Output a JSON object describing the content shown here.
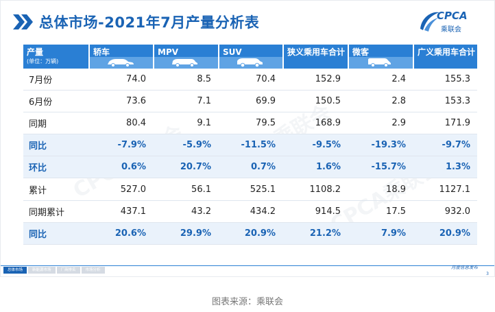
{
  "title": "总体市场-2021年7月产量分析表",
  "logo": {
    "text": "CPCA",
    "sub": "乘联会"
  },
  "watermark": "CPCA乘联会",
  "table": {
    "corner": "产量",
    "unit": "(单位：万辆)",
    "columns": [
      "轿车",
      "MPV",
      "SUV",
      "狭义乘用车合计",
      "微客",
      "广义乘用车合计"
    ],
    "rows": [
      {
        "label": "7月份",
        "values": [
          "74.0",
          "8.5",
          "70.4",
          "152.9",
          "2.4",
          "155.3"
        ],
        "highlight": false
      },
      {
        "label": "6月份",
        "values": [
          "73.6",
          "7.1",
          "69.9",
          "150.5",
          "2.8",
          "153.3"
        ],
        "highlight": false
      },
      {
        "label": "同期",
        "values": [
          "80.4",
          "9.1",
          "79.5",
          "168.9",
          "2.9",
          "171.9"
        ],
        "highlight": false
      },
      {
        "label": "同比",
        "values": [
          "-7.9%",
          "-5.9%",
          "-11.5%",
          "-9.5%",
          "-19.3%",
          "-9.7%"
        ],
        "highlight": true
      },
      {
        "label": "环比",
        "values": [
          "0.6%",
          "20.7%",
          "0.7%",
          "1.6%",
          "-15.7%",
          "1.3%"
        ],
        "highlight": true
      },
      {
        "label": "累计",
        "values": [
          "527.0",
          "56.1",
          "525.1",
          "1108.2",
          "18.9",
          "1127.1"
        ],
        "highlight": false
      },
      {
        "label": "同期累计",
        "values": [
          "437.1",
          "43.2",
          "434.2",
          "914.5",
          "17.5",
          "932.0"
        ],
        "highlight": false
      },
      {
        "label": "同比",
        "values": [
          "20.6%",
          "29.9%",
          "20.9%",
          "21.2%",
          "7.9%",
          "20.9%"
        ],
        "highlight": true
      }
    ]
  },
  "footer": {
    "tabs": [
      "总体市场",
      "新能源市场",
      "厂商排名",
      "市场分析"
    ],
    "meta": "月度信息发布",
    "page": "3"
  },
  "caption": "图表来源：乘联会",
  "colors": {
    "accent": "#1a63b4",
    "header": "#2a7fd4",
    "highlight_row": "#eaf2fb"
  },
  "icons": [
    "chevron-right-icon",
    "cpca-logo-icon",
    "sedan-icon",
    "mpv-icon",
    "suv-icon",
    "minivan-icon"
  ]
}
